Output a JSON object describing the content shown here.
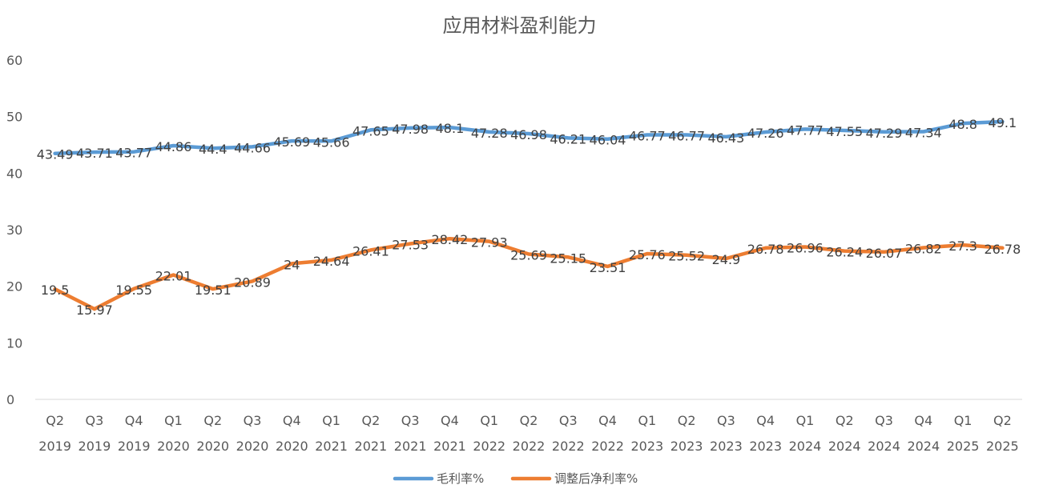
{
  "chart_data": {
    "type": "line",
    "title": "应用材料盈利能力",
    "categories": [
      [
        "Q2",
        "2019"
      ],
      [
        "Q3",
        "2019"
      ],
      [
        "Q4",
        "2019"
      ],
      [
        "Q1",
        "2020"
      ],
      [
        "Q2",
        "2020"
      ],
      [
        "Q3",
        "2020"
      ],
      [
        "Q4",
        "2020"
      ],
      [
        "Q1",
        "2021"
      ],
      [
        "Q2",
        "2021"
      ],
      [
        "Q3",
        "2021"
      ],
      [
        "Q4",
        "2021"
      ],
      [
        "Q1",
        "2022"
      ],
      [
        "Q2",
        "2022"
      ],
      [
        "Q3",
        "2022"
      ],
      [
        "Q4",
        "2022"
      ],
      [
        "Q1",
        "2023"
      ],
      [
        "Q2",
        "2023"
      ],
      [
        "Q3",
        "2023"
      ],
      [
        "Q4",
        "2023"
      ],
      [
        "Q1",
        "2024"
      ],
      [
        "Q2",
        "2024"
      ],
      [
        "Q3",
        "2024"
      ],
      [
        "Q4",
        "2024"
      ],
      [
        "Q1",
        "2025"
      ],
      [
        "Q2",
        "2025"
      ]
    ],
    "series": [
      {
        "name": "毛利率%",
        "color": "#5b9bd5",
        "values": [
          43.49,
          43.71,
          43.77,
          44.86,
          44.4,
          44.66,
          45.69,
          45.66,
          47.65,
          47.98,
          48.1,
          47.28,
          46.98,
          46.21,
          46.04,
          46.77,
          46.77,
          46.43,
          47.26,
          47.77,
          47.55,
          47.29,
          47.34,
          48.8,
          49.1
        ],
        "labels": [
          "43.49",
          "43.71",
          "43.77",
          "44.86",
          "44.4",
          "44.66",
          "45.69",
          "45.66",
          "47.65",
          "47.98",
          "48.1",
          "47.28",
          "46.98",
          "46.21",
          "46.04",
          "46.77",
          "46.77",
          "46.43",
          "47.26",
          "47.77",
          "47.55",
          "47.29",
          "47.34",
          "48.8",
          "49.1"
        ]
      },
      {
        "name": "调整后净利率%",
        "color": "#ed7d31",
        "values": [
          19.5,
          15.97,
          19.55,
          22.01,
          19.51,
          20.89,
          24,
          24.64,
          26.41,
          27.53,
          28.42,
          27.93,
          25.69,
          25.15,
          23.51,
          25.76,
          25.52,
          24.9,
          26.78,
          26.96,
          26.24,
          26.07,
          26.82,
          27.3,
          26.78
        ],
        "labels": [
          "19.5",
          "15.97",
          "19.55",
          "22.01",
          "19.51",
          "20.89",
          "24",
          "24.64",
          "26.41",
          "27.53",
          "28.42",
          "27.93",
          "25.69",
          "25.15",
          "23.51",
          "25.76",
          "25.52",
          "24.9",
          "26.78",
          "26.96",
          "26.24",
          "26.07",
          "26.82",
          "27.3",
          "26.78"
        ]
      }
    ],
    "ylim": [
      0,
      60
    ],
    "yticks": [
      "0",
      "10",
      "20",
      "30",
      "40",
      "50",
      "60"
    ],
    "grid": false,
    "legend": "bottom"
  }
}
